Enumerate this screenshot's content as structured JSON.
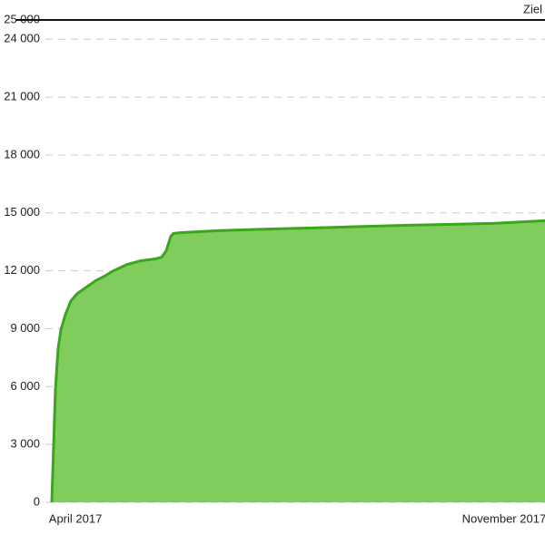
{
  "chart_data": {
    "type": "area",
    "x": [
      0,
      0.74,
      1.29,
      1.84,
      2.76,
      3.87,
      5.16,
      7.0,
      8.84,
      10.68,
      12.52,
      15.29,
      18.05,
      20.81,
      22.28,
      23.2,
      24.13,
      24.68,
      26.34,
      33.7,
      44.75,
      59.48,
      72.38,
      89.87,
      100
    ],
    "values": [
      0,
      5860,
      7980,
      8930,
      9730,
      10440,
      10820,
      11150,
      11480,
      11720,
      12000,
      12330,
      12520,
      12610,
      12710,
      13040,
      13790,
      13940,
      13980,
      14080,
      14170,
      14270,
      14360,
      14460,
      14600
    ],
    "color": "#80cc5c",
    "line_color": "#3aa61a",
    "xlim": [
      0,
      100
    ],
    "xticks": [
      {
        "value": 4.8,
        "label": "April 2017"
      },
      {
        "value": 91.7,
        "label": "November 2017"
      }
    ],
    "ylim": [
      0,
      25000
    ],
    "yticks": [
      0,
      {
        "value": 3000,
        "label": "3 000"
      },
      {
        "value": 6000,
        "label": "6 000"
      },
      {
        "value": 9000,
        "label": "9 000"
      },
      {
        "value": 12000,
        "label": "12 000"
      },
      {
        "value": 15000,
        "label": "15 000"
      },
      {
        "value": 18000,
        "label": "18 000"
      },
      {
        "value": 21000,
        "label": "21 000"
      },
      {
        "value": 24000,
        "label": "24 000"
      },
      {
        "value": 25000,
        "label": "25 000"
      }
    ],
    "grid": true,
    "goal": {
      "value": 25000,
      "label": "Ziel"
    }
  }
}
